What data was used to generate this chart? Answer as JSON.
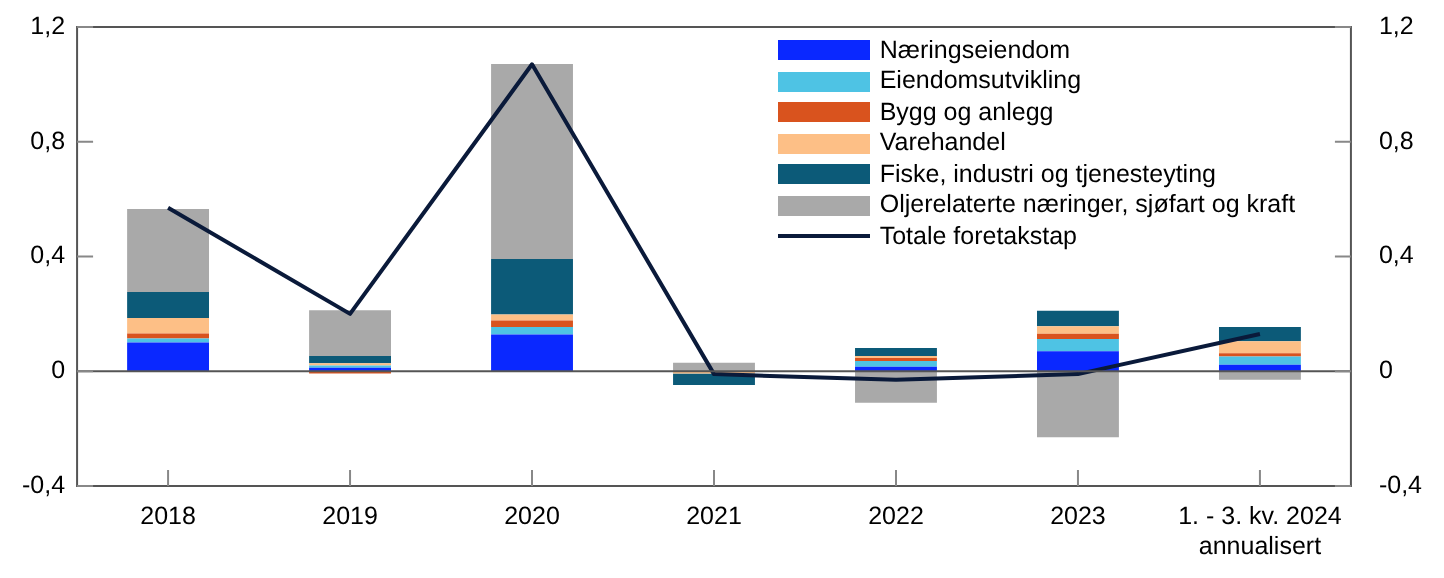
{
  "chart_data": {
    "type": "bar",
    "stacked": true,
    "categories": [
      "2018",
      "2019",
      "2020",
      "2021",
      "2022",
      "2023",
      "1. - 3. kv. 2024\nannualisert"
    ],
    "series": [
      {
        "name": "Næringseiendom",
        "color": "#0a28ff",
        "values": [
          0.1,
          0.012,
          0.128,
          0,
          0.016,
          0.07,
          0.023
        ]
      },
      {
        "name": "Eiendomsutvikling",
        "color": "#4ec3e4",
        "values": [
          0.014,
          0.008,
          0.026,
          0,
          0.02,
          0.042,
          0.028
        ]
      },
      {
        "name": "Bygg og anlegg",
        "color": "#d9531e",
        "values": [
          0.018,
          -0.008,
          0.023,
          -0.003,
          0.01,
          0.019,
          0.012
        ]
      },
      {
        "name": "Varehandel",
        "color": "#fdbf86",
        "values": [
          0.054,
          0.008,
          0.021,
          -0.005,
          0.007,
          0.026,
          0.042
        ]
      },
      {
        "name": "Fiske, industri og tjenesteyting",
        "color": "#0c5a78",
        "values": [
          0.09,
          0.025,
          0.193,
          -0.04,
          0.028,
          0.054,
          0.049
        ]
      },
      {
        "name": "Oljerelaterte næringer, sjøfart og kraft",
        "color": "#a9a9a9",
        "values": [
          0.29,
          0.16,
          0.68,
          0.03,
          -0.11,
          -0.23,
          -0.03
        ]
      },
      {
        "name": "Totale foretakstap",
        "type": "line",
        "color": "#0a1a3a",
        "values": [
          0.57,
          0.2,
          1.07,
          -0.01,
          -0.03,
          -0.01,
          0.13
        ]
      }
    ],
    "ylim": [
      -0.4,
      1.2
    ],
    "yticks": [
      {
        "value": -0.4,
        "label": "-0,4"
      },
      {
        "value": 0,
        "label": "0"
      },
      {
        "value": 0.4,
        "label": "0,4"
      },
      {
        "value": 0.8,
        "label": "0,8"
      },
      {
        "value": 1.2,
        "label": "1,2"
      }
    ],
    "y2lim": [
      -0.4,
      1.2
    ],
    "y2ticks": [
      {
        "value": -0.4,
        "label": "-0,4"
      },
      {
        "value": 0,
        "label": "0"
      },
      {
        "value": 0.4,
        "label": "0,4"
      },
      {
        "value": 0.8,
        "label": "0,8"
      },
      {
        "value": 1.2,
        "label": "1,2"
      }
    ],
    "ref_lines": [
      {
        "axis": "y",
        "value": 0,
        "color": "#555555"
      }
    ],
    "grid": false,
    "legend": "top right",
    "marker": "none"
  }
}
